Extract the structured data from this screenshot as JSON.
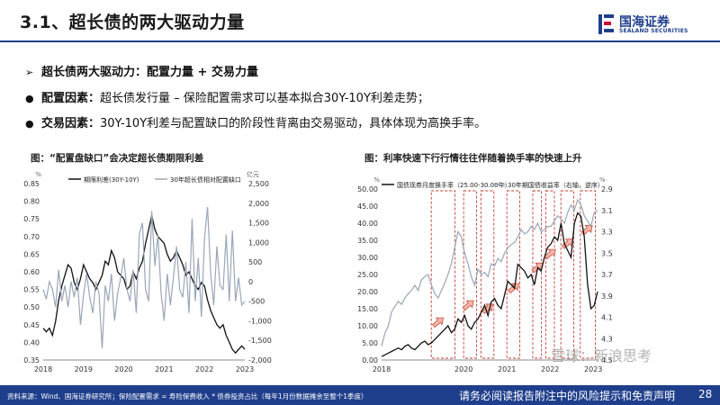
{
  "header": {
    "title": "3.1、超长债的两大驱动力量",
    "logo_cn": "国海证券",
    "logo_en": "SEALAND SECURITIES"
  },
  "bullets": [
    {
      "mark": "➢",
      "bold": "超长债两大驱动力：配置力量 + 交易力量",
      "text": ""
    },
    {
      "mark": "●",
      "bold": "配置因素：",
      "text": "超长债发行量 – 保险配置需求可以基本拟合30Y-10Y利差走势；"
    },
    {
      "mark": "●",
      "bold": "交易因素：",
      "text": "30Y-10Y利差与配置缺口的阶段性背离由交易驱动，具体体现为高换手率。"
    }
  ],
  "chart_left": {
    "caption": "图：“配置盘缺口”会决定超长债期限利差",
    "chart_data": {
      "type": "line",
      "left_unit": "%",
      "right_unit": "亿元",
      "x_ticks": [
        "2018",
        "2019",
        "2020",
        "2021",
        "2022",
        "2023"
      ],
      "ylim_left": [
        0.35,
        0.85
      ],
      "ylim_right": [
        -2000,
        2500
      ],
      "y_ticks_left": [
        "0.85",
        "0.80",
        "0.75",
        "0.70",
        "0.65",
        "0.60",
        "0.55",
        "0.50",
        "0.45",
        "0.40",
        "0.35"
      ],
      "y_ticks_right": [
        "2,500",
        "2,000",
        "1,500",
        "1,000",
        "500",
        "0",
        "-500",
        "-1,000",
        "-1,500",
        "-2,000"
      ],
      "series": [
        {
          "name": "期限利差(30Y-10Y)",
          "axis": "left",
          "color": "#111111",
          "values": [
            0.44,
            0.43,
            0.44,
            0.42,
            0.46,
            0.52,
            0.56,
            0.59,
            0.62,
            0.61,
            0.57,
            0.55,
            0.58,
            0.62,
            0.6,
            0.58,
            0.57,
            0.55,
            0.57,
            0.59,
            0.63,
            0.62,
            0.66,
            0.64,
            0.6,
            0.59,
            0.58,
            0.55,
            0.56,
            0.6,
            0.58,
            0.61,
            0.63,
            0.68,
            0.72,
            0.76,
            0.72,
            0.7,
            0.69,
            0.68,
            0.65,
            0.63,
            0.64,
            0.66,
            0.64,
            0.62,
            0.59,
            0.6,
            0.58,
            0.56,
            0.55,
            0.57,
            0.56,
            0.52,
            0.49,
            0.47,
            0.45,
            0.44,
            0.45,
            0.42,
            0.4,
            0.38,
            0.37,
            0.38,
            0.39,
            0.38
          ]
        },
        {
          "name": "30年超长债相对配置缺口",
          "axis": "right",
          "color": "#9aa6b8",
          "values": [
            -200,
            -450,
            0,
            -200,
            -650,
            300,
            -500,
            -100,
            -650,
            0,
            -400,
            100,
            -1100,
            -350,
            200,
            -400,
            -800,
            0,
            -300,
            -1700,
            -100,
            -500,
            200,
            -1000,
            -300,
            100,
            600,
            -200,
            -500,
            300,
            -800,
            1200,
            1500,
            -200,
            -500,
            1800,
            400,
            1200,
            -300,
            -1000,
            200,
            -600,
            100,
            900,
            -200,
            -400,
            500,
            -800,
            1600,
            -500,
            600,
            -900,
            1100,
            1900,
            200,
            -600,
            900,
            -100,
            -200,
            1200,
            -500,
            1300,
            -500,
            100,
            -600,
            -500
          ]
        }
      ]
    }
  },
  "chart_right": {
    "caption": "图：利率快速下行行情往往伴随着换手率的快速上升",
    "chart_data": {
      "type": "line",
      "left_unit": "%",
      "right_unit": "%",
      "x_ticks": [
        "2018",
        "2020",
        "2021",
        "2022",
        "2023"
      ],
      "ylim_left": [
        0,
        50
      ],
      "ylim_right": [
        4.5,
        2.9
      ],
      "y_ticks_left": [
        "50.00",
        "45.00",
        "40.00",
        "35.00",
        "30.00",
        "25.00",
        "20.00",
        "15.00",
        "10.00",
        "5.00",
        "0.00"
      ],
      "y_ticks_right": [
        "2.9",
        "3.1",
        "3.3",
        "3.5",
        "3.7",
        "3.9",
        "4.1",
        "4.3",
        "4.5"
      ],
      "series": [
        {
          "name": "国债现券月度换手率（25.00-30.00年）",
          "axis": "left",
          "color": "#111111",
          "values": [
            1,
            1.5,
            2,
            2.5,
            3,
            3.5,
            3,
            4,
            4.5,
            3.5,
            3,
            4,
            5,
            5.5,
            4.5,
            5,
            6,
            7,
            8,
            9,
            10,
            8,
            9,
            12,
            11,
            13,
            10,
            9,
            11,
            12,
            14,
            16,
            13,
            17,
            18,
            16,
            15,
            19,
            23,
            22,
            21,
            28,
            27,
            26,
            24,
            25,
            22,
            27,
            26,
            30,
            33,
            34,
            36,
            35,
            40,
            34,
            32,
            30,
            40,
            43,
            42,
            36,
            22,
            15,
            16,
            20
          ]
        },
        {
          "name": "30年期国债收益率（右轴，逆序）",
          "axis": "right",
          "color": "#9aa6b8",
          "values": [
            4.37,
            4.25,
            4.18,
            4.05,
            4.0,
            3.95,
            3.98,
            3.92,
            3.88,
            3.85,
            3.8,
            3.85,
            3.75,
            3.72,
            3.7,
            3.8,
            3.88,
            3.92,
            3.85,
            3.78,
            3.7,
            3.6,
            3.45,
            3.3,
            3.35,
            3.5,
            3.6,
            3.72,
            3.8,
            3.65,
            3.7,
            3.68,
            3.72,
            3.6,
            3.62,
            3.55,
            3.58,
            3.5,
            3.45,
            3.42,
            3.4,
            3.35,
            3.28,
            3.32,
            3.3,
            3.25,
            3.28,
            3.22,
            3.3,
            3.28,
            3.25,
            3.25,
            3.2,
            3.15,
            3.18,
            3.22,
            3.12,
            3.05,
            3.1,
            3.0,
            3.05,
            3.15,
            3.2,
            3.25,
            3.12,
            3.1
          ]
        }
      ],
      "highlight_boxes": 8,
      "arrow_count": 8
    }
  },
  "footer": {
    "source": "资料来源：Wind、国海证券研究所；保险配置需求 = 寿险保费收入 * 债券投资占比（每年1月份数据摊余至整个1季度）",
    "disclaimer": "请务必阅读报告附注中的风险提示和免责声明",
    "page": "28"
  },
  "watermark": "雪球：新浪思考"
}
